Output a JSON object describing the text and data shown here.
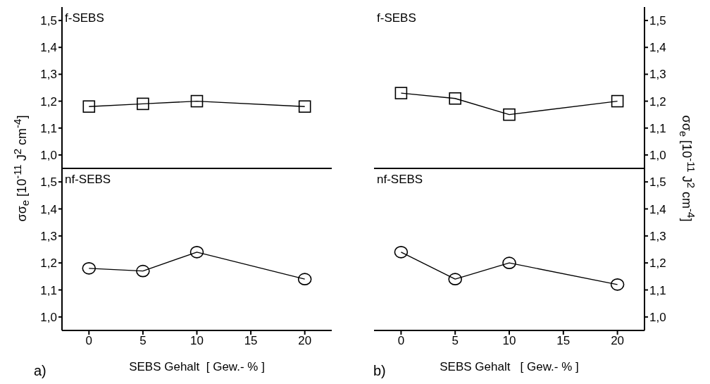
{
  "chart_data": [
    {
      "type": "line",
      "title": "f-SEBS",
      "ylabel": "σσ$_{e}$ [10$^{-11}$ J$^{2}$ cm$^{-4}$]",
      "x": [
        0,
        5,
        10,
        20
      ],
      "series": [
        {
          "color": "#000000",
          "values": [
            1.18,
            1.19,
            1.2,
            1.18
          ]
        }
      ],
      "xlim": [
        -2.5,
        22.5
      ],
      "xticks": [
        0,
        5,
        10,
        15,
        20
      ],
      "ylim": [
        0.95,
        1.55
      ],
      "yticks": [
        {
          "value": 1.0,
          "label": "1,0"
        },
        {
          "value": 1.1,
          "label": "1,1"
        },
        {
          "value": 1.2,
          "label": "1,2"
        },
        {
          "value": 1.3,
          "label": "1,3"
        },
        {
          "value": 1.4,
          "label": "1,4"
        },
        {
          "value": 1.5,
          "label": "1,5"
        }
      ],
      "marker": "square",
      "tick_labels": "y"
    },
    {
      "type": "line",
      "title": "nf-SEBS",
      "xlabel": "SEBS Gehalt  [ Gew.- % ]",
      "annotations": [
        "a)"
      ],
      "x": [
        0,
        5,
        10,
        20
      ],
      "series": [
        {
          "color": "#000000",
          "values": [
            1.18,
            1.17,
            1.24,
            1.14
          ]
        }
      ],
      "xlim": [
        -2.5,
        22.5
      ],
      "xticks": [
        0,
        5,
        10,
        15,
        20
      ],
      "ylim": [
        0.95,
        1.55
      ],
      "yticks": [
        {
          "value": 1.0,
          "label": "1,0"
        },
        {
          "value": 1.1,
          "label": "1,1"
        },
        {
          "value": 1.2,
          "label": "1,2"
        },
        {
          "value": 1.3,
          "label": "1,3"
        },
        {
          "value": 1.4,
          "label": "1,4"
        },
        {
          "value": 1.5,
          "label": "1,5"
        }
      ],
      "marker": "circle"
    },
    {
      "type": "line",
      "title": "f-SEBS",
      "ylabel": "σσ$_{e}$ [10$^{-11}$ J$^{2}$ cm$^{-4}$]",
      "x": [
        0,
        5,
        10,
        20
      ],
      "series": [
        {
          "color": "#000000",
          "values": [
            1.23,
            1.21,
            1.15,
            1.2
          ]
        }
      ],
      "xlim": [
        -2.5,
        22.5
      ],
      "xticks": [
        0,
        5,
        10,
        15,
        20
      ],
      "ylim": [
        0.95,
        1.55
      ],
      "yticks": [
        {
          "value": 1.0,
          "label": "1,0"
        },
        {
          "value": 1.1,
          "label": "1,1"
        },
        {
          "value": 1.2,
          "label": "1,2"
        },
        {
          "value": 1.3,
          "label": "1,3"
        },
        {
          "value": 1.4,
          "label": "1,4"
        },
        {
          "value": 1.5,
          "label": "1,5"
        }
      ],
      "marker": "square",
      "tick_labels": "y"
    },
    {
      "type": "line",
      "title": "nf-SEBS",
      "xlabel": "SEBS Gehalt   [ Gew.- % ]",
      "annotations": [
        "b)"
      ],
      "x": [
        0,
        5,
        10,
        20
      ],
      "series": [
        {
          "color": "#000000",
          "values": [
            1.24,
            1.14,
            1.2,
            1.12
          ]
        }
      ],
      "xlim": [
        -2.5,
        22.5
      ],
      "xticks": [
        0,
        5,
        10,
        15,
        20
      ],
      "ylim": [
        0.95,
        1.55
      ],
      "yticks": [
        {
          "value": 1.0,
          "label": "1,0"
        },
        {
          "value": 1.1,
          "label": "1,1"
        },
        {
          "value": 1.2,
          "label": "1,2"
        },
        {
          "value": 1.3,
          "label": "1,3"
        },
        {
          "value": 1.4,
          "label": "1,4"
        },
        {
          "value": 1.5,
          "label": "1,5"
        }
      ],
      "marker": "circle"
    }
  ]
}
